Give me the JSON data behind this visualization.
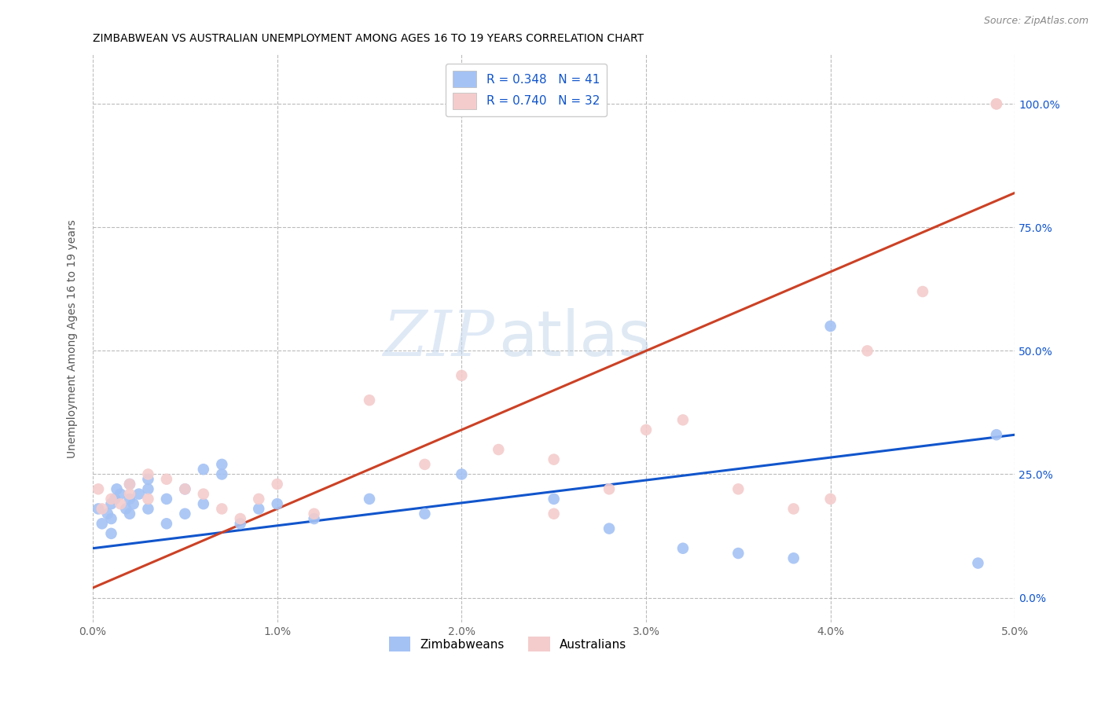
{
  "title": "ZIMBABWEAN VS AUSTRALIAN UNEMPLOYMENT AMONG AGES 16 TO 19 YEARS CORRELATION CHART",
  "source": "Source: ZipAtlas.com",
  "ylabel": "Unemployment Among Ages 16 to 19 years",
  "xlim": [
    0.0,
    0.05
  ],
  "ylim": [
    -0.05,
    1.1
  ],
  "xticks": [
    0.0,
    0.01,
    0.02,
    0.03,
    0.04,
    0.05
  ],
  "xticklabels": [
    "0.0%",
    "1.0%",
    "2.0%",
    "3.0%",
    "4.0%",
    "5.0%"
  ],
  "yticks": [
    0.0,
    0.25,
    0.5,
    0.75,
    1.0
  ],
  "yticklabels": [
    "0.0%",
    "25.0%",
    "50.0%",
    "75.0%",
    "100.0%"
  ],
  "zim_color": "#a4c2f4",
  "aus_color": "#f4cccc",
  "zim_line_color": "#1155cc",
  "aus_line_color": "#cc4125",
  "legend_zim_label": "R = 0.348   N = 41",
  "legend_aus_label": "R = 0.740   N = 32",
  "right_yaxis_color": "#1155cc",
  "zim_line_x0": 0.0,
  "zim_line_x1": 0.05,
  "zim_line_y0": 0.1,
  "zim_line_y1": 0.33,
  "aus_line_x0": 0.0,
  "aus_line_x1": 0.05,
  "aus_line_y0": 0.02,
  "aus_line_y1": 0.82,
  "zim_scatter_x": [
    0.0003,
    0.0005,
    0.0008,
    0.001,
    0.001,
    0.001,
    0.0012,
    0.0013,
    0.0015,
    0.0018,
    0.002,
    0.002,
    0.002,
    0.0022,
    0.0025,
    0.003,
    0.003,
    0.003,
    0.004,
    0.004,
    0.005,
    0.005,
    0.006,
    0.006,
    0.007,
    0.007,
    0.008,
    0.009,
    0.01,
    0.012,
    0.015,
    0.018,
    0.02,
    0.025,
    0.028,
    0.032,
    0.035,
    0.038,
    0.04,
    0.048,
    0.049
  ],
  "zim_scatter_y": [
    0.18,
    0.15,
    0.17,
    0.19,
    0.16,
    0.13,
    0.2,
    0.22,
    0.21,
    0.18,
    0.2,
    0.23,
    0.17,
    0.19,
    0.21,
    0.22,
    0.18,
    0.24,
    0.2,
    0.15,
    0.22,
    0.17,
    0.26,
    0.19,
    0.27,
    0.25,
    0.15,
    0.18,
    0.19,
    0.16,
    0.2,
    0.17,
    0.25,
    0.2,
    0.14,
    0.1,
    0.09,
    0.08,
    0.55,
    0.07,
    0.33
  ],
  "aus_scatter_x": [
    0.0003,
    0.0005,
    0.001,
    0.0015,
    0.002,
    0.002,
    0.003,
    0.003,
    0.004,
    0.005,
    0.006,
    0.007,
    0.008,
    0.009,
    0.01,
    0.012,
    0.015,
    0.018,
    0.02,
    0.022,
    0.025,
    0.025,
    0.028,
    0.03,
    0.032,
    0.035,
    0.038,
    0.04,
    0.042,
    0.045,
    0.049,
    0.049
  ],
  "aus_scatter_y": [
    0.22,
    0.18,
    0.2,
    0.19,
    0.23,
    0.21,
    0.25,
    0.2,
    0.24,
    0.22,
    0.21,
    0.18,
    0.16,
    0.2,
    0.23,
    0.17,
    0.4,
    0.27,
    0.45,
    0.3,
    0.28,
    0.17,
    0.22,
    0.34,
    0.36,
    0.22,
    0.18,
    0.2,
    0.5,
    0.62,
    1.0,
    1.0
  ],
  "background_color": "#ffffff",
  "grid_color": "#bbbbbb",
  "title_fontsize": 10,
  "label_fontsize": 10,
  "tick_fontsize": 10,
  "source_fontsize": 9
}
